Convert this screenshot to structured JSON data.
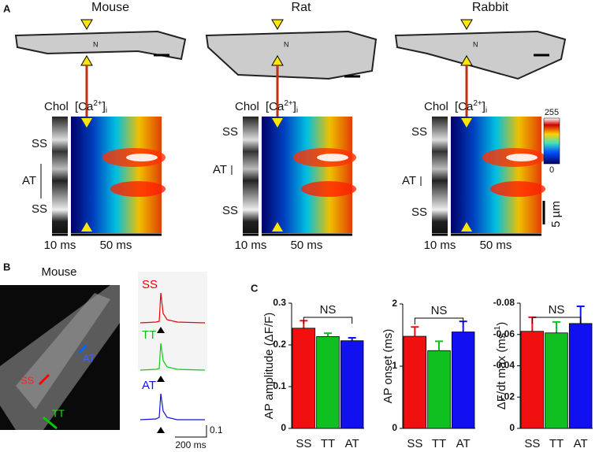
{
  "panel_a": {
    "label": "A",
    "columns": [
      {
        "species": "Mouse",
        "nucleus": "N",
        "chol": "Chol",
        "ca": [
          "[Ca",
          "2+",
          "]",
          "i"
        ],
        "rows": [
          "SS",
          "AT",
          "SS"
        ],
        "time": [
          "10 ms",
          "50 ms"
        ]
      },
      {
        "species": "Rat",
        "nucleus": "N",
        "chol": "Chol",
        "ca": [
          "[Ca",
          "2+",
          "]",
          "i"
        ],
        "rows": [
          "SS",
          "AT",
          "SS"
        ],
        "time": [
          "10 ms",
          "50 ms"
        ]
      },
      {
        "species": "Rabbit",
        "nucleus": "N",
        "chol": "Chol",
        "ca": [
          "[Ca",
          "2+",
          "]",
          "i"
        ],
        "rows": [
          "SS",
          "AT",
          "SS"
        ],
        "time": [
          "10 ms",
          "50 ms"
        ]
      }
    ],
    "colorbar": [
      "255",
      "0"
    ],
    "scale": "5 µm"
  },
  "panel_b": {
    "label": "B",
    "title": "Mouse",
    "image_labels": [
      "SS",
      "TT",
      "AT"
    ],
    "traces": [
      "SS",
      "TT",
      "AT"
    ],
    "scale": [
      "0.1",
      "200 ms"
    ]
  },
  "panel_c": {
    "label": "C"
  },
  "chart_data": [
    {
      "type": "bar",
      "ylabel": "AP amplitude (ΔF/F)",
      "categories": [
        "SS",
        "TT",
        "AT"
      ],
      "values": [
        0.24,
        0.22,
        0.21
      ],
      "errors": [
        0.018,
        0.008,
        0.007
      ],
      "colors": [
        "#f01010",
        "#10c020",
        "#1010f0"
      ],
      "ylim": [
        0,
        0.3
      ],
      "yticks": [
        0,
        0.1,
        0.2,
        0.3
      ],
      "annotation": "NS"
    },
    {
      "type": "bar",
      "ylabel": "AP onset (ms)",
      "categories": [
        "SS",
        "TT",
        "AT"
      ],
      "values": [
        1.48,
        1.25,
        1.55
      ],
      "errors": [
        0.15,
        0.15,
        0.17
      ],
      "colors": [
        "#f01010",
        "#10c020",
        "#1010f0"
      ],
      "ylim": [
        0,
        2
      ],
      "yticks": [
        0,
        1,
        2
      ],
      "annotation": "NS"
    },
    {
      "type": "bar",
      "ylabel": [
        "ΔF/dt max (ms",
        "-1",
        ")"
      ],
      "categories": [
        "SS",
        "TT",
        "AT"
      ],
      "values": [
        -0.062,
        -0.061,
        -0.067
      ],
      "errors": [
        0.009,
        0.007,
        0.011
      ],
      "colors": [
        "#f01010",
        "#10c020",
        "#1010f0"
      ],
      "ylim": [
        0,
        -0.08
      ],
      "yticks": [
        0,
        {
          "value": -0.02,
          "label": "-.02"
        },
        -0.04,
        -0.06,
        -0.08
      ],
      "annotation": "NS"
    }
  ]
}
